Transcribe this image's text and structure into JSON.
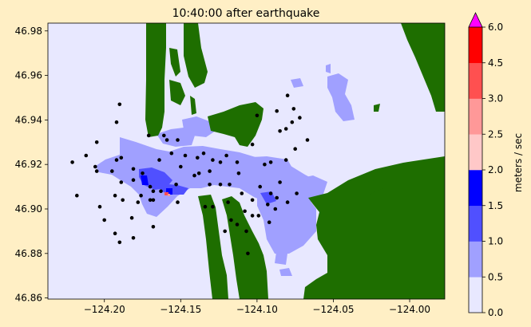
{
  "chart_data": {
    "type": "heatmap",
    "title": "10:40:00 after earthquake",
    "xlim": [
      -124.237,
      -123.977
    ],
    "ylim": [
      46.8595,
      46.9835
    ],
    "x_ticks": [
      -124.2,
      -124.15,
      -124.1,
      -124.05,
      -124.0
    ],
    "x_tick_labels": [
      "−124.20",
      "−124.15",
      "−124.10",
      "−124.05",
      "−124.00"
    ],
    "y_ticks": [
      46.86,
      46.88,
      46.9,
      46.92,
      46.94,
      46.96,
      46.98
    ],
    "y_tick_labels": [
      "46.86",
      "46.88",
      "46.90",
      "46.92",
      "46.94",
      "46.96",
      "46.98"
    ],
    "colorbar": {
      "label": "meters / sec",
      "boundaries": [
        0.0,
        0.5,
        1.0,
        1.5,
        2.0,
        2.5,
        3.0,
        4.5,
        6.0
      ],
      "tick_labels": [
        "0.0",
        "0.5",
        "1.0",
        "1.5",
        "2.0",
        "2.5",
        "3.0",
        "4.5",
        "6.0"
      ],
      "colors": [
        "#e8e8ff",
        "#a0a0ff",
        "#5050ff",
        "#0000ff",
        "#ffc8c8",
        "#ff9898",
        "#ff5050",
        "#ff0000"
      ],
      "extend_color": "#ff00ff"
    },
    "background_color": "#e8e8ff",
    "land_color": "#1e6e00",
    "gauges": [
      [
        -124.221,
        46.921
      ],
      [
        -124.212,
        46.924
      ],
      [
        -124.205,
        46.93
      ],
      [
        -124.192,
        46.939
      ],
      [
        -124.19,
        46.947
      ],
      [
        -124.189,
        46.923
      ],
      [
        -124.192,
        46.922
      ],
      [
        -124.205,
        46.917
      ],
      [
        -124.195,
        46.917
      ],
      [
        -124.189,
        46.912
      ],
      [
        -124.193,
        46.906
      ],
      [
        -124.188,
        46.904
      ],
      [
        -124.178,
        46.903
      ],
      [
        -124.176,
        46.906
      ],
      [
        -124.17,
        46.904
      ],
      [
        -124.168,
        46.904
      ],
      [
        -124.168,
        46.892
      ],
      [
        -124.182,
        46.896
      ],
      [
        -124.181,
        46.887
      ],
      [
        -124.193,
        46.889
      ],
      [
        -124.203,
        46.901
      ],
      [
        -124.218,
        46.906
      ],
      [
        -124.2,
        46.895
      ],
      [
        -124.19,
        46.885
      ],
      [
        -124.171,
        46.933
      ],
      [
        -124.161,
        46.933
      ],
      [
        -124.159,
        46.931
      ],
      [
        -124.152,
        46.931
      ],
      [
        -124.147,
        46.924
      ],
      [
        -124.139,
        46.923
      ],
      [
        -124.135,
        46.925
      ],
      [
        -124.129,
        46.922
      ],
      [
        -124.12,
        46.924
      ],
      [
        -124.113,
        46.921
      ],
      [
        -124.112,
        46.916
      ],
      [
        -124.118,
        46.911
      ],
      [
        -124.124,
        46.921
      ],
      [
        -124.131,
        46.917
      ],
      [
        -124.141,
        46.915
      ],
      [
        -124.153,
        46.911
      ],
      [
        -124.163,
        46.908
      ],
      [
        -124.168,
        46.908
      ],
      [
        -124.175,
        46.916
      ],
      [
        -124.164,
        46.922
      ],
      [
        -124.156,
        46.925
      ],
      [
        -124.15,
        46.919
      ],
      [
        -124.152,
        46.903
      ],
      [
        -124.138,
        46.916
      ],
      [
        -124.131,
        46.911
      ],
      [
        -124.124,
        46.911
      ],
      [
        -124.11,
        46.907
      ],
      [
        -124.103,
        46.904
      ],
      [
        -124.098,
        46.91
      ],
      [
        -124.091,
        46.907
      ],
      [
        -124.085,
        46.912
      ],
      [
        -124.081,
        46.922
      ],
      [
        -124.074,
        46.907
      ],
      [
        -124.093,
        46.902
      ],
      [
        -124.108,
        46.899
      ],
      [
        -124.107,
        46.89
      ],
      [
        -124.113,
        46.893
      ],
      [
        -124.117,
        46.895
      ],
      [
        -124.121,
        46.89
      ],
      [
        -124.103,
        46.897
      ],
      [
        -124.099,
        46.897
      ],
      [
        -124.092,
        46.894
      ],
      [
        -124.088,
        46.9
      ],
      [
        -124.087,
        46.905
      ],
      [
        -124.08,
        46.903
      ],
      [
        -124.095,
        46.92
      ],
      [
        -124.091,
        46.921
      ],
      [
        -124.103,
        46.929
      ],
      [
        -124.1,
        46.942
      ],
      [
        -124.087,
        46.944
      ],
      [
        -124.08,
        46.951
      ],
      [
        -124.076,
        46.945
      ],
      [
        -124.072,
        46.941
      ],
      [
        -124.077,
        46.939
      ],
      [
        -124.081,
        46.936
      ],
      [
        -124.085,
        46.935
      ],
      [
        -124.067,
        46.931
      ],
      [
        -124.075,
        46.927
      ],
      [
        -124.181,
        46.918
      ],
      [
        -124.181,
        46.913
      ],
      [
        -124.17,
        46.91
      ],
      [
        -124.206,
        46.919
      ],
      [
        -124.119,
        46.903
      ],
      [
        -124.129,
        46.901
      ],
      [
        -124.134,
        46.901
      ],
      [
        -124.106,
        46.88
      ]
    ]
  }
}
